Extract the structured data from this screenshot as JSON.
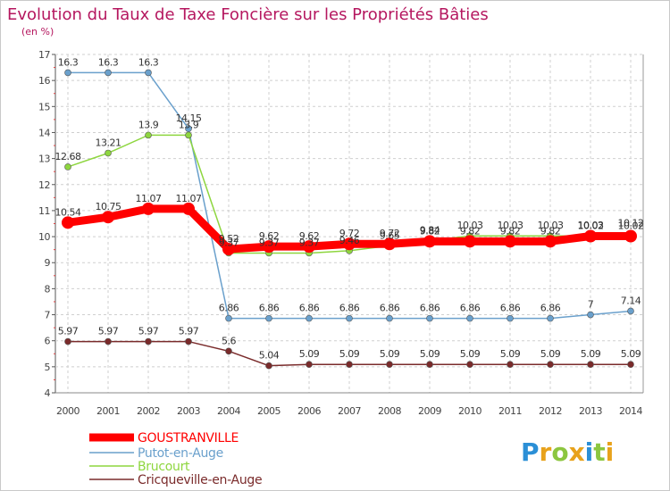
{
  "chart_data": {
    "type": "line",
    "title": "Evolution du Taux de Taxe Foncière sur les Propriétés Bâties",
    "subtitle": "(en %)",
    "x": [
      "2000",
      "2001",
      "2002",
      "2003",
      "2004",
      "2005",
      "2006",
      "2007",
      "2008",
      "2009",
      "2010",
      "2011",
      "2012",
      "2013",
      "2014"
    ],
    "ylim": [
      4,
      17
    ],
    "yticks": [
      "4",
      "5",
      "6",
      "7",
      "8",
      "9",
      "10",
      "11",
      "12",
      "13",
      "14",
      "15",
      "16",
      "17"
    ],
    "series": [
      {
        "name": "GOUSTRANVILLE",
        "color": "#ff0000",
        "values": [
          10.54,
          10.75,
          11.07,
          11.07,
          9.52,
          9.62,
          9.62,
          9.72,
          9.72,
          9.82,
          9.82,
          9.82,
          9.82,
          10.02,
          10.02
        ],
        "labels": [
          "10.54",
          "10.75",
          "11.07",
          "11.07",
          "9.52",
          "9.62",
          "9.62",
          "9.72",
          "9.72",
          "9.82",
          "9.82",
          "9.82",
          "9.82",
          "10.02",
          "10.02"
        ]
      },
      {
        "name": "Putot-en-Auge",
        "color": "#6aa0cc",
        "values": [
          16.3,
          16.3,
          16.3,
          14.15,
          6.86,
          6.86,
          6.86,
          6.86,
          6.86,
          6.86,
          6.86,
          6.86,
          6.86,
          7,
          7.14
        ],
        "labels": [
          "16.3",
          "16.3",
          "16.3",
          "14.15",
          "6.86",
          "6.86",
          "6.86",
          "6.86",
          "6.86",
          "6.86",
          "6.86",
          "6.86",
          "6.86",
          "7",
          "7.14"
        ]
      },
      {
        "name": "Brucourt",
        "color": "#8ed63f",
        "values": [
          12.68,
          13.21,
          13.9,
          13.9,
          9.37,
          9.37,
          9.37,
          9.46,
          9.65,
          9.84,
          10.03,
          10.03,
          10.03,
          10.03,
          10.12
        ],
        "labels": [
          "12.68",
          "13.21",
          "13.9",
          "13.9",
          "9.37",
          "9.37",
          "9.37",
          "9.46",
          "9.65",
          "9.84",
          "10.03",
          "10.03",
          "10.03",
          "10.03",
          "10.12"
        ]
      },
      {
        "name": "Cricqueville-en-Auge",
        "color": "#7a2b2b",
        "values": [
          5.97,
          5.97,
          5.97,
          5.97,
          5.6,
          5.04,
          5.09,
          5.09,
          5.09,
          5.09,
          5.09,
          5.09,
          5.09,
          5.09,
          5.09
        ],
        "labels": [
          "5.97",
          "5.97",
          "5.97",
          "5.97",
          "5.6",
          "5.04",
          "5.09",
          "5.09",
          "5.09",
          "5.09",
          "5.09",
          "5.09",
          "5.09",
          "5.09",
          "5.09"
        ]
      }
    ]
  },
  "logo": {
    "letters": [
      "P",
      "r",
      "o",
      "x",
      "i",
      "t",
      "i"
    ],
    "colors": [
      "#2b8fd6",
      "#e8a21b",
      "#8cc63f",
      "#e8a21b",
      "#2b8fd6",
      "#8cc63f",
      "#e8a21b"
    ]
  }
}
